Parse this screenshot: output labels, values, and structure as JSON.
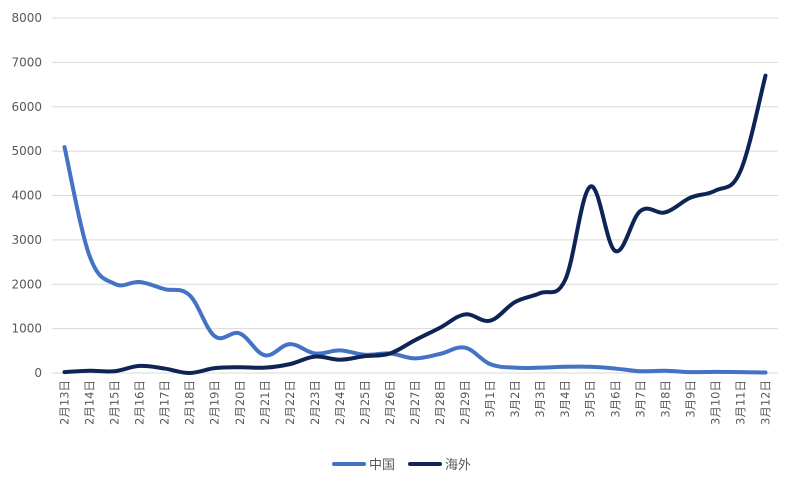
{
  "chart_data": {
    "type": "line",
    "categories": [
      "2月13日",
      "2月14日",
      "2月15日",
      "2月16日",
      "2月17日",
      "2月18日",
      "2月19日",
      "2月20日",
      "2月21日",
      "2月22日",
      "2月23日",
      "2月24日",
      "2月25日",
      "2月26日",
      "2月27日",
      "2月28日",
      "2月29日",
      "3月1日",
      "3月2日",
      "3月3日",
      "3月4日",
      "3月5日",
      "3月6日",
      "3月7日",
      "3月8日",
      "3月9日",
      "3月10日",
      "3月11日",
      "3月12日"
    ],
    "series": [
      {
        "name": "中国",
        "color": "#4472c4",
        "values": [
          5090,
          2640,
          2010,
          2050,
          1890,
          1750,
          830,
          890,
          400,
          650,
          440,
          510,
          410,
          440,
          330,
          430,
          570,
          200,
          120,
          120,
          140,
          140,
          100,
          40,
          50,
          20,
          25,
          20,
          10
        ]
      },
      {
        "name": "海外",
        "color": "#0e2454",
        "values": [
          20,
          50,
          40,
          160,
          100,
          0,
          110,
          130,
          120,
          200,
          370,
          300,
          380,
          440,
          740,
          1020,
          1320,
          1180,
          1600,
          1800,
          2100,
          4200,
          2750,
          3650,
          3620,
          3950,
          4110,
          4550,
          6700
        ]
      }
    ],
    "yticks": [
      0,
      1000,
      2000,
      3000,
      4000,
      5000,
      6000,
      7000,
      8000
    ],
    "ylim": [
      0,
      8000
    ],
    "grid": true,
    "legend_position": "bottom-center",
    "gridline_color": "#d9d9d9",
    "text_color": "#595959"
  }
}
